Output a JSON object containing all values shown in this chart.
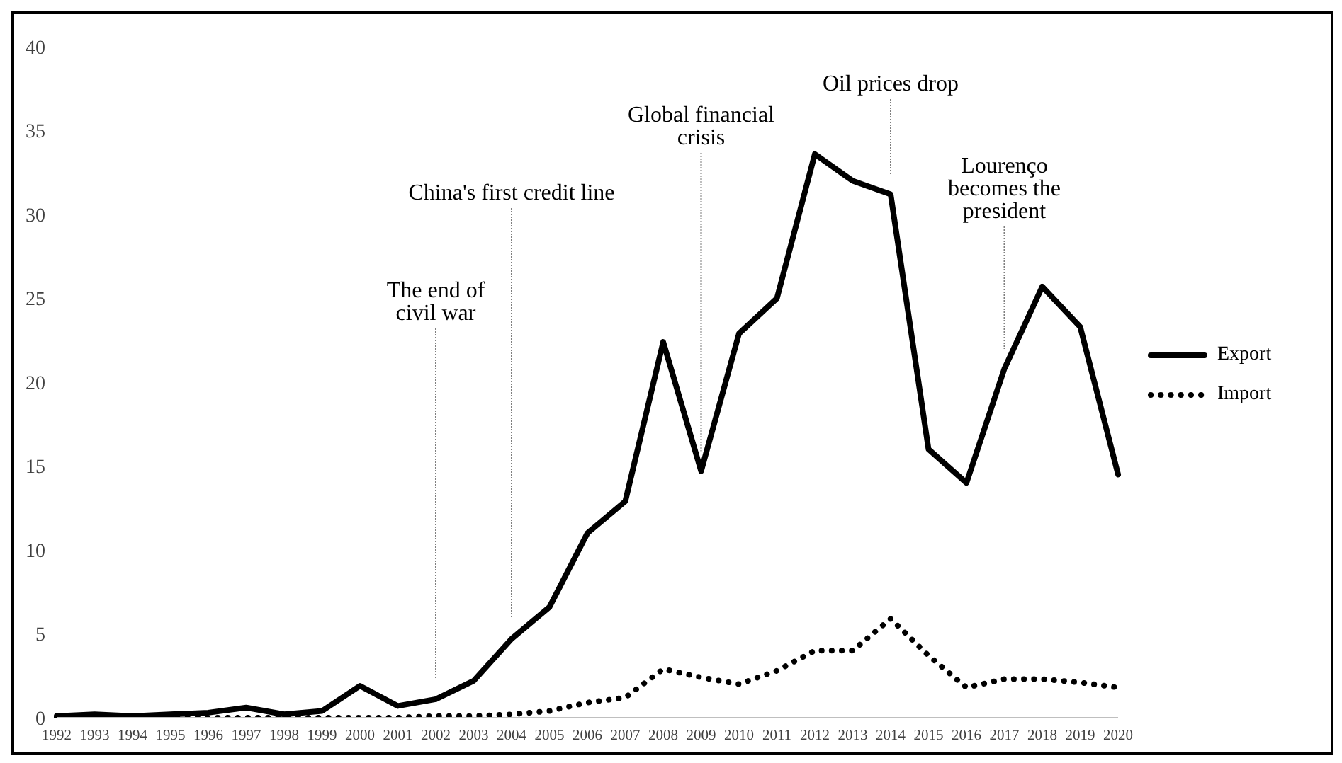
{
  "chart_data": {
    "type": "line",
    "categories": [
      "1992",
      "1993",
      "1994",
      "1995",
      "1996",
      "1997",
      "1998",
      "1999",
      "2000",
      "2001",
      "2002",
      "2003",
      "2004",
      "2005",
      "2006",
      "2007",
      "2008",
      "2009",
      "2010",
      "2011",
      "2012",
      "2013",
      "2014",
      "2015",
      "2016",
      "2017",
      "2018",
      "2019",
      "2020"
    ],
    "series": [
      {
        "name": "Export",
        "color": "#000000",
        "line_style": "solid",
        "values": [
          0.1,
          0.2,
          0.1,
          0.2,
          0.3,
          0.6,
          0.2,
          0.4,
          1.9,
          0.7,
          1.1,
          2.2,
          4.7,
          6.6,
          11.0,
          12.9,
          22.4,
          14.7,
          22.9,
          25.0,
          33.6,
          32.0,
          31.2,
          16.0,
          14.0,
          20.8,
          25.7,
          23.3,
          14.5
        ]
      },
      {
        "name": "Import",
        "color": "#000000",
        "line_style": "dotted",
        "values": [
          0.0,
          0.0,
          0.0,
          0.0,
          0.0,
          0.0,
          0.0,
          0.0,
          0.0,
          0.0,
          0.1,
          0.1,
          0.2,
          0.4,
          0.9,
          1.2,
          2.9,
          2.4,
          2.0,
          2.8,
          4.0,
          4.0,
          5.9,
          3.7,
          1.8,
          2.3,
          2.3,
          2.1,
          1.8
        ]
      }
    ],
    "ylim": [
      0,
      40
    ],
    "yticks": [
      0,
      5,
      10,
      15,
      20,
      25,
      30,
      35,
      40
    ],
    "grid": false,
    "legend": "right",
    "marker": "none",
    "ref_lines": [
      {
        "axis": "x",
        "value": "2002",
        "label": "The end of civil war",
        "color": "#7f7f7f",
        "line_style": "dotted"
      },
      {
        "axis": "x",
        "value": "2004",
        "label": "China's first credit line",
        "color": "#7f7f7f",
        "line_style": "dotted"
      },
      {
        "axis": "x",
        "value": "2009",
        "label": "Global financial crisis",
        "color": "#7f7f7f",
        "line_style": "dotted"
      },
      {
        "axis": "x",
        "value": "2014",
        "label": "Oil prices drop",
        "color": "#7f7f7f",
        "line_style": "dotted"
      },
      {
        "axis": "x",
        "value": "2017",
        "label": "Lourenço becomes the president",
        "color": "#7f7f7f",
        "line_style": "dotted"
      }
    ]
  }
}
